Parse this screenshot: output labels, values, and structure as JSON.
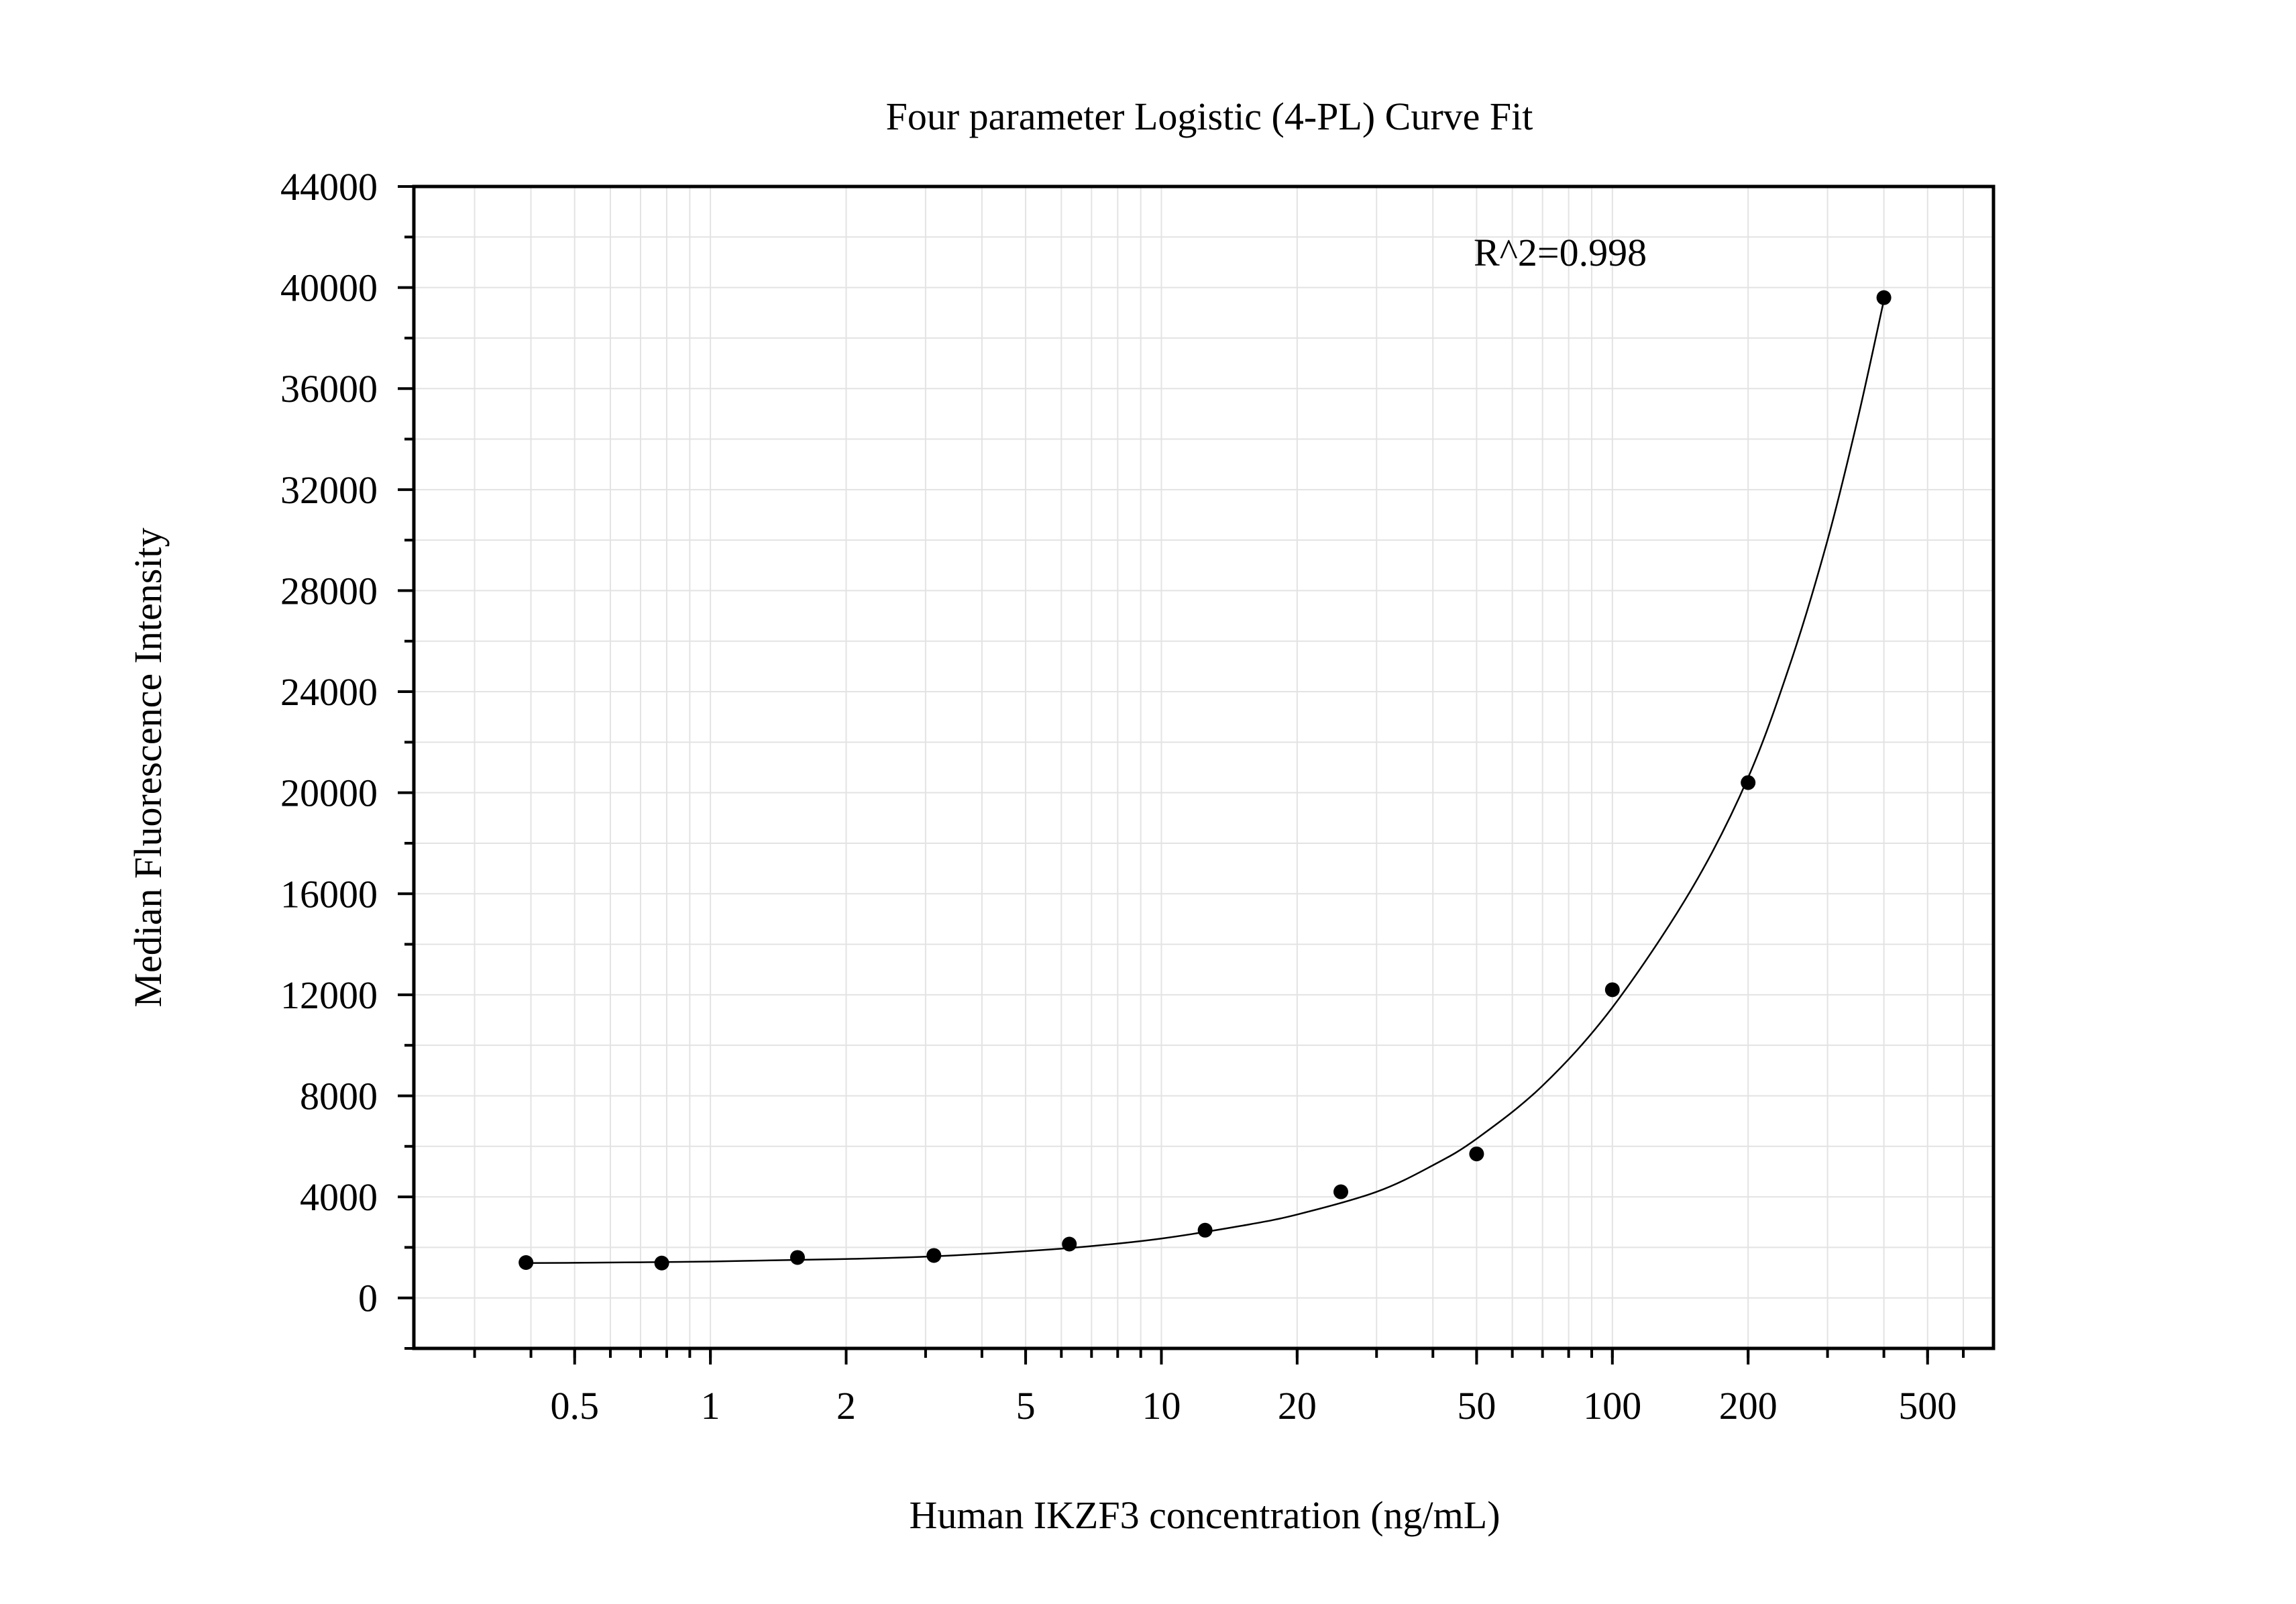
{
  "chart_data": {
    "type": "scatter",
    "title": "Four parameter Logistic (4-PL) Curve Fit",
    "xlabel": "Human IKZF3 concentration (ng/mL)",
    "ylabel": "Median Fluorescence Intensity",
    "x_scale": "log",
    "xlim": [
      0.22,
      700
    ],
    "ylim": [
      -2000,
      44000
    ],
    "x_ticks": [
      0.5,
      1,
      2,
      5,
      10,
      20,
      50,
      100,
      200,
      500
    ],
    "x_tick_labels": [
      "0.5",
      "1",
      "2",
      "5",
      "10",
      "20",
      "50",
      "100",
      "200",
      "500"
    ],
    "y_ticks": [
      0,
      4000,
      8000,
      12000,
      16000,
      20000,
      24000,
      28000,
      32000,
      36000,
      40000,
      44000
    ],
    "y_tick_labels": [
      "0",
      "4000",
      "8000",
      "12000",
      "16000",
      "20000",
      "24000",
      "28000",
      "32000",
      "36000",
      "40000",
      "44000"
    ],
    "grid": true,
    "annotation": "R^2=0.998",
    "series": [
      {
        "x": [
          0.39,
          0.78,
          1.56,
          3.13,
          6.25,
          12.5,
          25,
          50,
          100,
          200,
          400
        ],
        "y": [
          1400,
          1380,
          1600,
          1680,
          2130,
          2680,
          4200,
          5700,
          12200,
          20400,
          39600
        ]
      }
    ],
    "fit_curve": {
      "x": [
        0.39,
        0.5,
        0.7,
        1,
        1.5,
        2,
        3,
        5,
        7,
        10,
        15,
        20,
        30,
        40,
        50,
        70,
        100,
        150,
        200,
        250,
        300,
        350,
        400
      ],
      "y": [
        1380,
        1390,
        1410,
        1440,
        1500,
        1540,
        1630,
        1850,
        2050,
        2350,
        2850,
        3300,
        4200,
        5250,
        6300,
        8400,
        11500,
        16200,
        20600,
        25300,
        30000,
        34800,
        39500
      ]
    },
    "colors": {
      "marker": "#000000",
      "curve": "#000000",
      "grid": "#e3e3e3",
      "axis": "#000000"
    }
  }
}
